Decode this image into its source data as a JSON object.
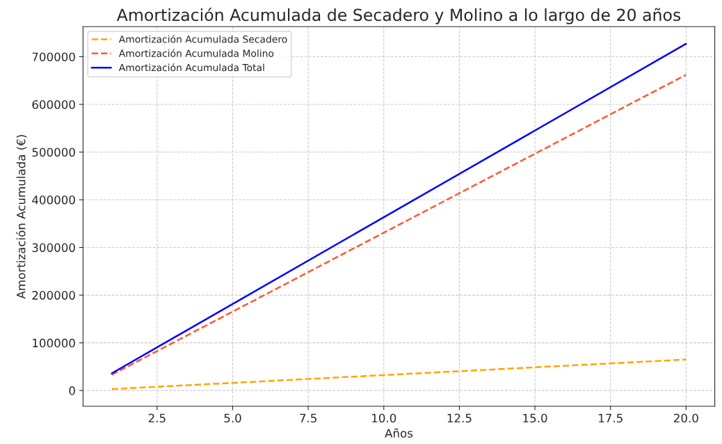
{
  "chart_data": {
    "type": "line",
    "title": "Amortización Acumulada de Secadero y Molino a lo largo de 20 años",
    "xlabel": "Años",
    "ylabel": "Amortización Acumulada (€)",
    "x": [
      1,
      20
    ],
    "series": [
      {
        "name": "Amortización Acumulada Secadero",
        "color": "#ffa500",
        "line_style": "dashed",
        "values": [
          3000,
          65000
        ]
      },
      {
        "name": "Amortización Acumulada Molino",
        "color": "#ff5733",
        "line_style": "dashed",
        "values": [
          33000,
          662000
        ]
      },
      {
        "name": "Amortización Acumulada Total",
        "color": "#0000ff",
        "line_style": "solid",
        "values": [
          36000,
          727000
        ]
      }
    ],
    "xlim": [
      0.05,
      20.95
    ],
    "xticks": [
      {
        "value": 2.5,
        "label": "2.5"
      },
      {
        "value": 5,
        "label": "5.0"
      },
      {
        "value": 7.5,
        "label": "7.5"
      },
      {
        "value": 10,
        "label": "10.0"
      },
      {
        "value": 12.5,
        "label": "12.5"
      },
      {
        "value": 15,
        "label": "15.0"
      },
      {
        "value": 17.5,
        "label": "17.5"
      },
      {
        "value": 20,
        "label": "20.0"
      }
    ],
    "ylim": [
      -33000,
      763000
    ],
    "yticks": [
      0,
      100000,
      200000,
      300000,
      400000,
      500000,
      600000,
      700000
    ],
    "grid": true,
    "legend": "top left"
  }
}
